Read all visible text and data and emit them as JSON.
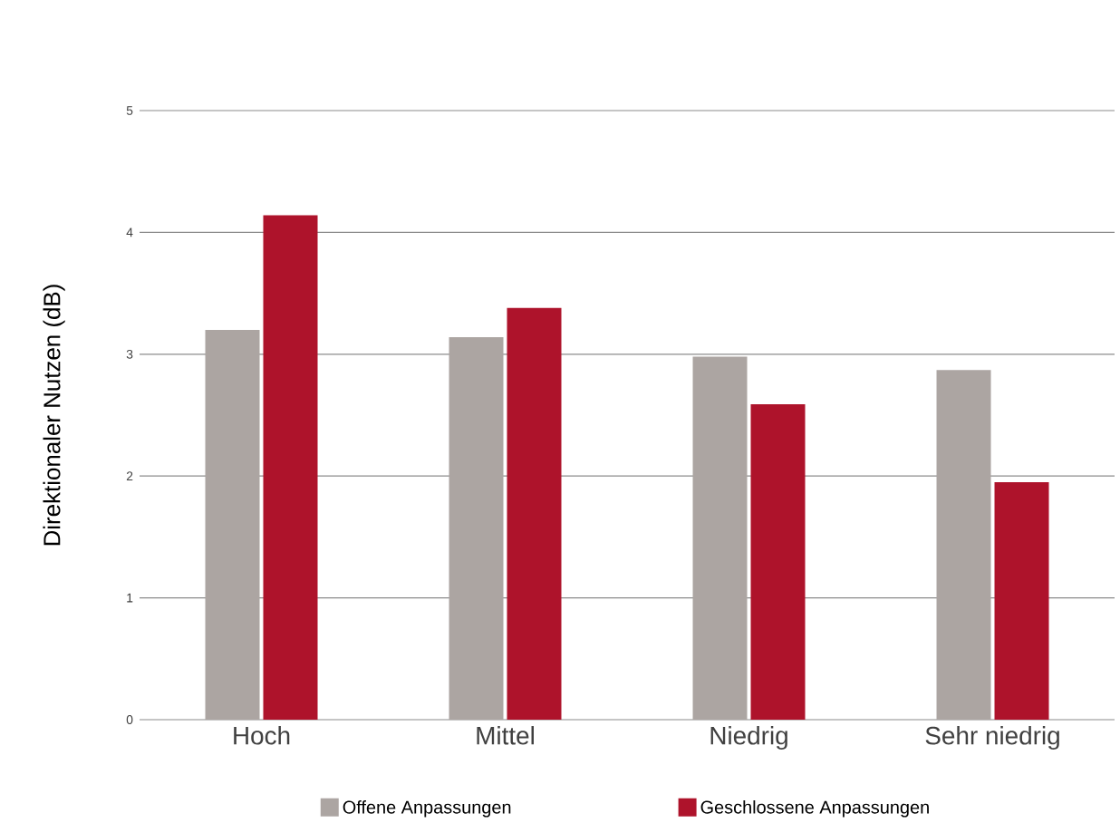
{
  "chart_data": {
    "type": "bar",
    "ylabel": "Direktionaler Nutzen (dB)",
    "categories": [
      "Hoch",
      "Mittel",
      "Niedrig",
      "Sehr niedrig"
    ],
    "series": [
      {
        "name": "Offene Anpassungen",
        "color": "#aca5a2",
        "values": [
          3.2,
          3.14,
          2.98,
          2.87
        ]
      },
      {
        "name": "Geschlossene Anpassungen",
        "color": "#ae132b",
        "values": [
          4.14,
          3.38,
          2.59,
          1.95
        ]
      }
    ],
    "ylim": [
      0,
      5
    ],
    "yticks": [
      0,
      1,
      2,
      3,
      4,
      5
    ],
    "grid": "y",
    "legend": "bottom"
  }
}
